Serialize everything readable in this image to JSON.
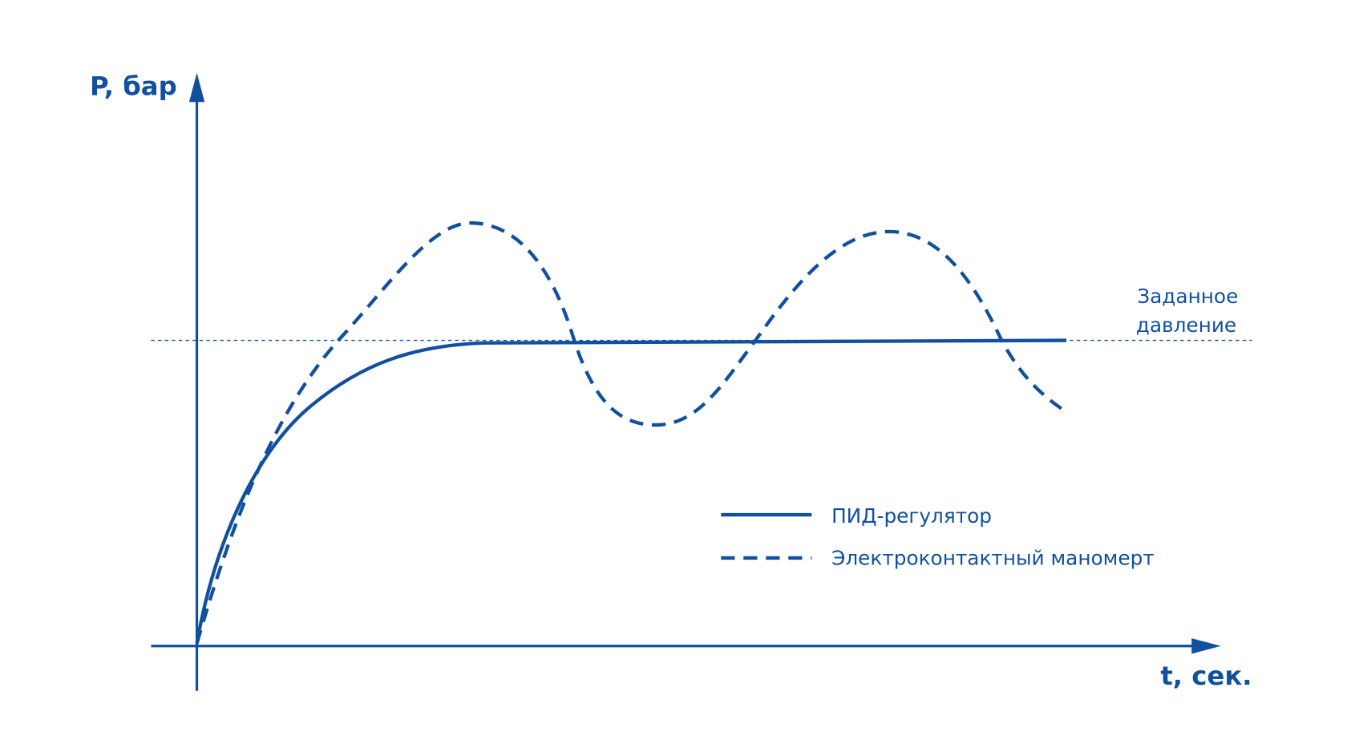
{
  "axes": {
    "y_label": "P, бар",
    "x_label": "t, сек."
  },
  "setpoint": {
    "label_line1": "Заданное",
    "label_line2": "давление"
  },
  "legend": {
    "items": [
      {
        "label": "ПИД-регулятор"
      },
      {
        "label": "Электроконтактный маномерт"
      }
    ]
  }
}
